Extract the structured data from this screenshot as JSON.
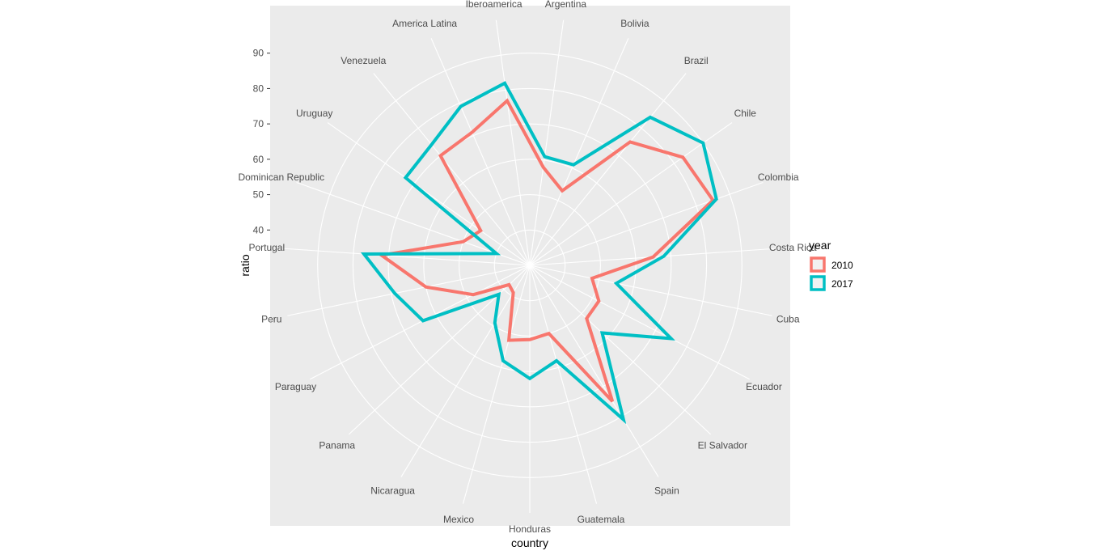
{
  "chart_data": {
    "type": "line",
    "coord": "polar",
    "xlabel": "country",
    "ylabel": "ratio",
    "y_ticks": [
      40,
      50,
      60,
      70,
      80,
      90
    ],
    "ylim": [
      30,
      100
    ],
    "grid": true,
    "legend_position": "right",
    "legend_title": "year",
    "categories": [
      "Argentina",
      "Bolivia",
      "Brazil",
      "Chile",
      "Colombia",
      "Costa Rica",
      "Cuba",
      "Ecuador",
      "El Salvador",
      "Spain",
      "Guatemala",
      "Honduras",
      "Mexico",
      "Nicaragua",
      "Panama",
      "Paraguay",
      "Peru",
      "Portugal",
      "Dominican Republic",
      "Uruguay",
      "Venezuela",
      "America Latina",
      "Iberoamerica"
    ],
    "series": [
      {
        "name": "2010",
        "color": "#F8766D",
        "values": [
          58,
          53,
          75,
          83,
          85,
          65,
          48,
          52,
          52,
          75,
          50,
          51,
          52,
          39,
          38,
          48,
          60,
          72,
          50,
          47,
          70,
          71,
          77
        ]
      },
      {
        "name": "2017",
        "color": "#00BFC4",
        "values": [
          61,
          61,
          84,
          90,
          86,
          68,
          55,
          75,
          58,
          81,
          58,
          62,
          58,
          49,
          42,
          64,
          69,
          77,
          40,
          73,
          74,
          79,
          82
        ]
      }
    ]
  }
}
